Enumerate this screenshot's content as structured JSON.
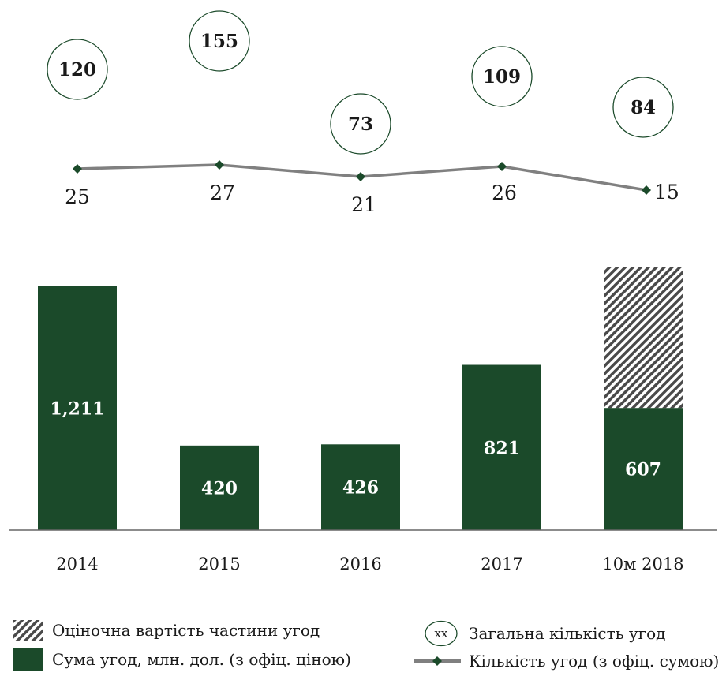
{
  "chart_data": {
    "type": "bar",
    "categories": [
      "2014",
      "2015",
      "2016",
      "2017",
      "10м 2018"
    ],
    "series": [
      {
        "name": "Сума угод, млн. дол. (з офіц. ціною)",
        "type": "bar",
        "values": [
          1211,
          420,
          426,
          821,
          607
        ],
        "color": "#1b4a2a"
      },
      {
        "name": "Оціночна вартість частини угод",
        "type": "bar-stacked-hatched",
        "values": [
          0,
          0,
          0,
          0,
          700
        ]
      },
      {
        "name": "Кількість угод (з офіц. сумою)",
        "type": "line",
        "values": [
          25,
          27,
          21,
          26,
          15
        ],
        "color": "#808080",
        "marker_color": "#1b4a2a"
      },
      {
        "name": "Загальна кількість угод",
        "type": "bubble-label",
        "values": [
          120,
          155,
          73,
          109,
          84
        ]
      }
    ],
    "bar_labels": [
      "1,211",
      "420",
      "426",
      "821",
      "607"
    ],
    "ylim": [
      0,
      1350
    ],
    "grid": false,
    "legend": {
      "hatch_label": "Оціночна вартість частини угод",
      "bar_label": "Сума угод, млн. дол. (з офіц. ціною)",
      "circle_symbol": "xx",
      "circle_label": "Загальна кількість угод",
      "line_label": "Кількість угод (з офіц. сумою)",
      "placement": "bottom"
    }
  }
}
